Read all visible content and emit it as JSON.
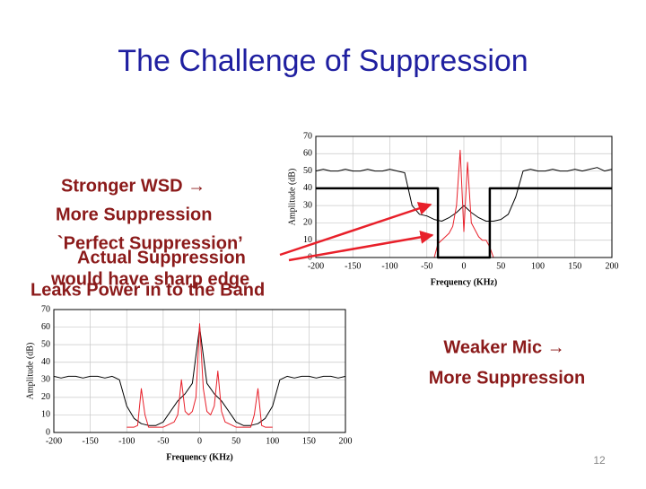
{
  "title": "The Challenge of Suppression",
  "left_text": [
    "Stronger WSD →",
    "More Suppression",
    "`Perfect Suppression’",
    "Actual Suppression",
    "would have sharp edge",
    "Leaks Power in to the Band"
  ],
  "right_text": [
    "Weaker Mic →",
    "More Suppression"
  ],
  "page_number": "12",
  "chart_data": [
    {
      "type": "line",
      "xlabel": "Frequency (KHz)",
      "ylabel": "Amplitude (dB)",
      "xlim": [
        -200,
        200
      ],
      "ylim": [
        0,
        70
      ],
      "xticks": [
        -200,
        -150,
        -100,
        -50,
        0,
        50,
        100,
        150,
        200
      ],
      "yticks": [
        0,
        10,
        20,
        30,
        40,
        50,
        60,
        70
      ],
      "grid": true,
      "series": [
        {
          "color": "#000000",
          "linewidth": 1,
          "x": [
            -200,
            -190,
            -180,
            -170,
            -160,
            -150,
            -140,
            -130,
            -120,
            -110,
            -100,
            -90,
            -80,
            -70,
            -60,
            -50,
            -40,
            -30,
            -20,
            -10,
            0,
            10,
            20,
            30,
            40,
            50,
            60,
            70,
            80,
            90,
            100,
            110,
            120,
            130,
            140,
            150,
            160,
            170,
            180,
            190,
            200
          ],
          "values": [
            50,
            51,
            50,
            50,
            51,
            50,
            50,
            51,
            50,
            50,
            51,
            50,
            49,
            30,
            25,
            24,
            22,
            21,
            23,
            26,
            30,
            26,
            23,
            21,
            21,
            22,
            25,
            35,
            50,
            51,
            50,
            50,
            51,
            50,
            50,
            51,
            50,
            51,
            52,
            50,
            51
          ]
        },
        {
          "color": "#e8202a",
          "linewidth": 1,
          "x": [
            -40,
            -35,
            -30,
            -25,
            -20,
            -15,
            -10,
            -5,
            0,
            5,
            10,
            15,
            20,
            25,
            30,
            35,
            40
          ],
          "values": [
            0,
            8,
            10,
            12,
            14,
            18,
            30,
            62,
            15,
            55,
            20,
            16,
            12,
            10,
            10,
            6,
            0
          ]
        },
        {
          "color": "#000000",
          "linewidth": 2.5,
          "x": [
            -200,
            -35,
            -35,
            35,
            35,
            200
          ],
          "values": [
            40,
            40,
            0,
            0,
            40,
            40
          ]
        }
      ]
    },
    {
      "type": "line",
      "xlabel": "Frequency (KHz)",
      "ylabel": "Amplitude (dB)",
      "xlim": [
        -200,
        200
      ],
      "ylim": [
        0,
        70
      ],
      "xticks": [
        -200,
        -150,
        -100,
        -50,
        0,
        50,
        100,
        150,
        200
      ],
      "yticks": [
        0,
        10,
        20,
        30,
        40,
        50,
        60,
        70
      ],
      "grid": true,
      "series": [
        {
          "color": "#000000",
          "linewidth": 1,
          "x": [
            -200,
            -190,
            -180,
            -170,
            -160,
            -150,
            -140,
            -130,
            -120,
            -110,
            -100,
            -90,
            -80,
            -70,
            -60,
            -50,
            -40,
            -30,
            -20,
            -10,
            0,
            10,
            20,
            30,
            40,
            50,
            60,
            70,
            80,
            90,
            100,
            110,
            120,
            130,
            140,
            150,
            160,
            170,
            180,
            190,
            200
          ],
          "values": [
            32,
            31,
            32,
            32,
            31,
            32,
            32,
            31,
            32,
            30,
            15,
            8,
            5,
            4,
            4,
            6,
            12,
            18,
            22,
            28,
            60,
            28,
            22,
            18,
            12,
            6,
            4,
            4,
            5,
            8,
            15,
            30,
            32,
            31,
            32,
            32,
            31,
            32,
            32,
            31,
            32
          ]
        },
        {
          "color": "#e8202a",
          "linewidth": 1,
          "x": [
            -100,
            -95,
            -90,
            -85,
            -80,
            -75,
            -70,
            -65,
            -60,
            -55,
            -50,
            -45,
            -40,
            -35,
            -30,
            -25,
            -20,
            -15,
            -10,
            -5,
            0,
            5,
            10,
            15,
            20,
            25,
            30,
            35,
            40,
            45,
            50,
            55,
            60,
            65,
            70,
            75,
            80,
            85,
            90,
            95,
            100
          ],
          "values": [
            3,
            3,
            3,
            4,
            25,
            10,
            3,
            3,
            3,
            3,
            3,
            4,
            5,
            6,
            10,
            30,
            12,
            10,
            12,
            20,
            62,
            25,
            12,
            10,
            15,
            35,
            12,
            6,
            5,
            4,
            3,
            3,
            3,
            3,
            3,
            10,
            25,
            4,
            3,
            3,
            3
          ]
        }
      ]
    }
  ]
}
